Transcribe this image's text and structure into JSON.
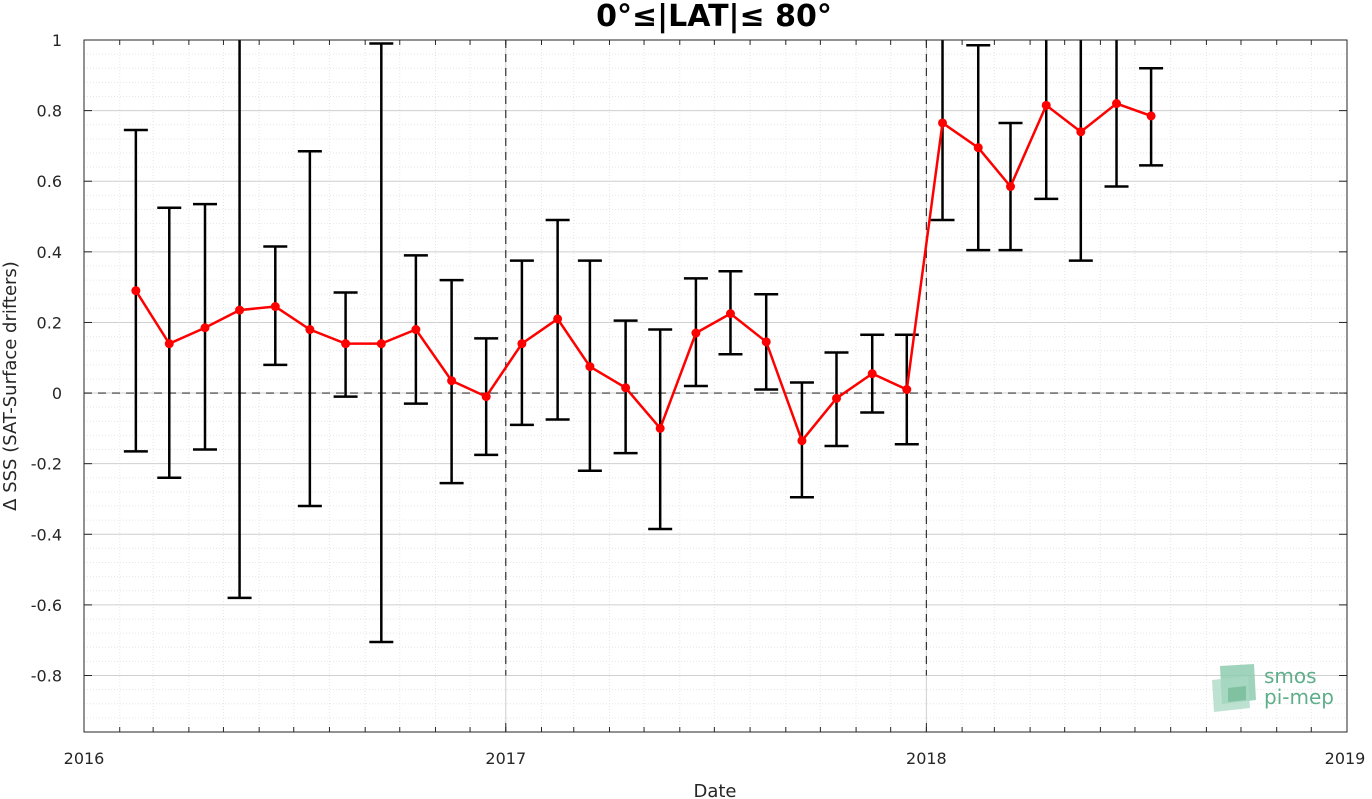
{
  "chart_data": {
    "type": "line",
    "title": "0°≤|LAT|≤ 80°",
    "xlabel": "Date",
    "ylabel": "Δ SSS (SAT-Surface drifters)",
    "x_ticks": [
      "2016",
      "2017",
      "2018",
      "2019"
    ],
    "y_ticks": [
      "1",
      "0.8",
      "0.6",
      "0.4",
      "0.2",
      "0",
      "-0.2",
      "-0.4",
      "-0.6",
      "-0.8"
    ],
    "xlim": [
      "2016-01-01",
      "2019-01-01"
    ],
    "ylim": [
      -0.96,
      1
    ],
    "grid": true,
    "minor_grid": true,
    "line_color": "#ff0000",
    "errorbar_color": "#000000",
    "series": [
      {
        "x": [
          "2016-02-15",
          "2016-03-15",
          "2016-04-15",
          "2016-05-15",
          "2016-06-15",
          "2016-07-15",
          "2016-08-15",
          "2016-09-15",
          "2016-10-15",
          "2016-11-15",
          "2016-12-15",
          "2017-01-15",
          "2017-02-15",
          "2017-03-15",
          "2017-04-15",
          "2017-05-15",
          "2017-06-15",
          "2017-07-15",
          "2017-08-15",
          "2017-09-15",
          "2017-10-15",
          "2017-11-15",
          "2017-12-15",
          "2018-01-15",
          "2018-02-15",
          "2018-03-15",
          "2018-04-15",
          "2018-05-15",
          "2018-06-15",
          "2018-07-15"
        ],
        "values": [
          0.29,
          0.14,
          0.185,
          0.235,
          0.245,
          0.18,
          0.14,
          0.14,
          0.18,
          0.035,
          -0.01,
          0.14,
          0.21,
          0.075,
          0.015,
          -0.1,
          0.17,
          0.225,
          0.145,
          -0.135,
          -0.015,
          0.055,
          0.01,
          0.765,
          0.695,
          0.585,
          0.815,
          0.74,
          0.82,
          0.785
        ],
        "err_low": [
          -0.165,
          -0.24,
          -0.16,
          -0.58,
          0.08,
          -0.32,
          -0.01,
          -0.705,
          -0.03,
          -0.255,
          -0.175,
          -0.09,
          -0.075,
          -0.22,
          -0.17,
          -0.385,
          0.02,
          0.11,
          0.01,
          -0.295,
          -0.15,
          -0.055,
          -0.145,
          0.49,
          0.405,
          0.405,
          0.55,
          0.375,
          0.585,
          0.645
        ],
        "err_high": [
          0.745,
          0.525,
          0.535,
          1.0,
          0.415,
          0.685,
          0.285,
          0.99,
          0.39,
          0.32,
          0.155,
          0.375,
          0.49,
          0.375,
          0.205,
          0.18,
          0.325,
          0.345,
          0.28,
          0.03,
          0.115,
          0.165,
          0.165,
          1.0,
          0.985,
          0.765,
          1.0,
          1.0,
          1.0,
          0.92
        ]
      }
    ],
    "reference_lines": {
      "horizontal_y": 0,
      "vertical_x": [
        "2017-01-01",
        "2018-01-01"
      ]
    }
  },
  "logo": {
    "line1": "smos",
    "line2": "pi-mep"
  }
}
